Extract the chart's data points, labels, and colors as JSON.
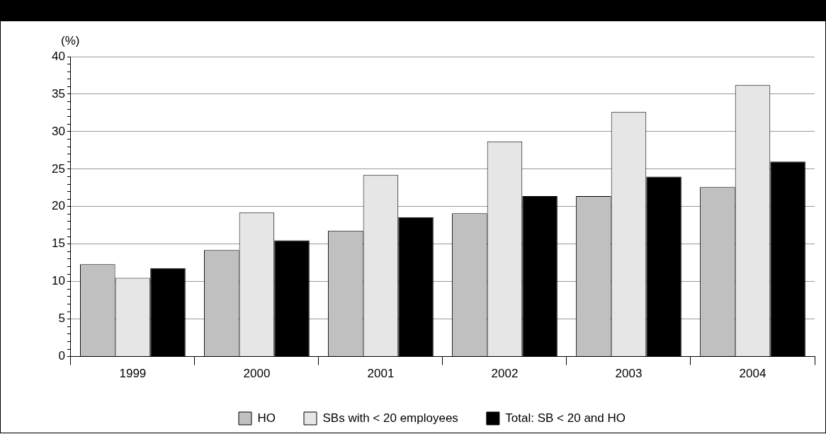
{
  "chart_data": {
    "type": "bar",
    "ylabel": "(%)",
    "categories": [
      "1999",
      "2000",
      "2001",
      "2002",
      "2003",
      "2004"
    ],
    "series": [
      {
        "name": "HO",
        "color": "#c0c0c0",
        "values": [
          12.3,
          14.2,
          16.8,
          19.1,
          21.4,
          22.6
        ]
      },
      {
        "name": "SBs with < 20 employees",
        "color": "#e6e6e6",
        "values": [
          10.5,
          19.2,
          24.2,
          28.7,
          32.6,
          36.2
        ]
      },
      {
        "name": "Total: SB < 20 and HO",
        "color": "#000000",
        "values": [
          11.8,
          15.5,
          18.6,
          21.4,
          24.0,
          26.0
        ]
      }
    ],
    "ylim": [
      0,
      40
    ],
    "yticks": [
      0,
      {
        "value": 1,
        "label": null
      },
      {
        "value": 2,
        "label": null
      },
      {
        "value": 3,
        "label": null
      },
      {
        "value": 4,
        "label": null
      },
      5,
      {
        "value": 6,
        "label": null
      },
      {
        "value": 7,
        "label": null
      },
      {
        "value": 8,
        "label": null
      },
      {
        "value": 9,
        "label": null
      },
      10,
      {
        "value": 11,
        "label": null
      },
      {
        "value": 12,
        "label": null
      },
      {
        "value": 13,
        "label": null
      },
      {
        "value": 14,
        "label": null
      },
      15,
      {
        "value": 16,
        "label": null
      },
      {
        "value": 17,
        "label": null
      },
      {
        "value": 18,
        "label": null
      },
      {
        "value": 19,
        "label": null
      },
      20,
      {
        "value": 21,
        "label": null
      },
      {
        "value": 22,
        "label": null
      },
      {
        "value": 23,
        "label": null
      },
      {
        "value": 24,
        "label": null
      },
      25,
      {
        "value": 26,
        "label": null
      },
      {
        "value": 27,
        "label": null
      },
      {
        "value": 28,
        "label": null
      },
      {
        "value": 29,
        "label": null
      },
      30,
      {
        "value": 31,
        "label": null
      },
      {
        "value": 32,
        "label": null
      },
      {
        "value": 33,
        "label": null
      },
      {
        "value": 34,
        "label": null
      },
      35,
      {
        "value": 36,
        "label": null
      },
      {
        "value": 37,
        "label": null
      },
      {
        "value": 38,
        "label": null
      },
      {
        "value": 39,
        "label": null
      },
      40
    ],
    "grid": "y",
    "legend": "bottom"
  }
}
